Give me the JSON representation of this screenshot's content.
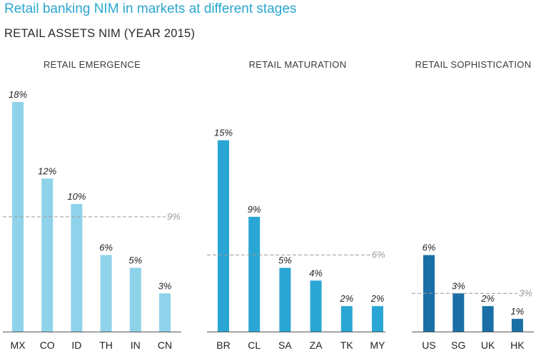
{
  "title": "Retail banking NIM in markets at different stages",
  "subtitle": "RETAIL ASSETS NIM (YEAR 2015)",
  "chart_data": [
    {
      "type": "bar",
      "title": "RETAIL EMERGENCE",
      "categories": [
        "MX",
        "CO",
        "ID",
        "TH",
        "IN",
        "CN"
      ],
      "values": [
        18,
        12,
        10,
        6,
        5,
        3
      ],
      "value_labels": [
        "18%",
        "12%",
        "10%",
        "6%",
        "5%",
        "3%"
      ],
      "average": 9,
      "average_label": "9%",
      "color": "#8fd3ea",
      "ylim": [
        0,
        18
      ]
    },
    {
      "type": "bar",
      "title": "RETAIL MATURATION",
      "categories": [
        "BR",
        "CL",
        "SA",
        "ZA",
        "TK",
        "MY"
      ],
      "values": [
        15,
        9,
        5,
        4,
        2,
        2
      ],
      "value_labels": [
        "15%",
        "9%",
        "5%",
        "4%",
        "2%",
        "2%"
      ],
      "average": 6,
      "average_label": "6%",
      "color": "#2aa6d4",
      "ylim": [
        0,
        18
      ]
    },
    {
      "type": "bar",
      "title": "RETAIL SOPHISTICATION",
      "categories": [
        "US",
        "SG",
        "UK",
        "HK"
      ],
      "values": [
        6,
        3,
        2,
        1
      ],
      "value_labels": [
        "6%",
        "3%",
        "2%",
        "1%"
      ],
      "average": 3,
      "average_label": "3%",
      "color": "#1a6fa6",
      "ylim": [
        0,
        18
      ]
    }
  ]
}
